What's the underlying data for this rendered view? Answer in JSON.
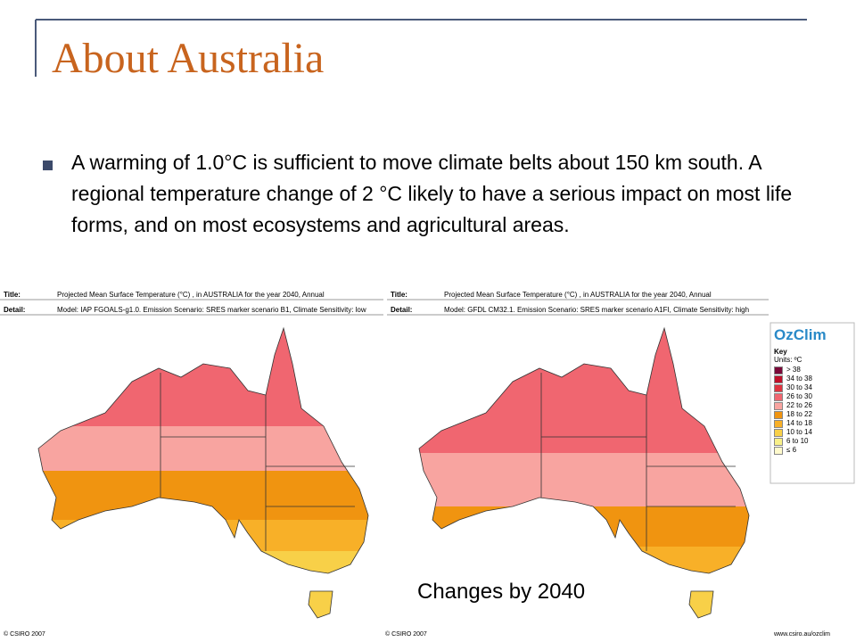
{
  "header": {
    "title": "About Australia"
  },
  "bullet": "A warming of 1.0°C is sufficient to move climate belts about 150 km south. A regional temperature change of 2 °C likely to have a serious impact on most life forms, and on most ecosystems and agricultural areas.",
  "maps": [
    {
      "title_label": "Title:",
      "title": "Projected Mean Surface Temperature (°C) , in AUSTRALIA for the year 2040, Annual",
      "detail_label": "Detail:",
      "detail": "Model: IAP FGOALS-g1.0. Emission Scenario: SRES marker scenario B1, Climate Sensitivity: low",
      "credit": "© CSIRO 2007"
    },
    {
      "title_label": "Title:",
      "title": "Projected Mean Surface Temperature (°C) , in AUSTRALIA for the year 2040, Annual",
      "detail_label": "Detail:",
      "detail": "Model: GFDL CM32.1. Emission Scenario: SRES marker scenario A1FI, Climate Sensitivity: high",
      "credit": "© CSIRO 2007"
    }
  ],
  "key": {
    "logo": "OzClim",
    "title": "Key",
    "units": "Units: ºC",
    "items": [
      {
        "label": "> 38",
        "color": "#7a0838"
      },
      {
        "label": "34 to 38",
        "color": "#c0102a"
      },
      {
        "label": "30 to 34",
        "color": "#e03440"
      },
      {
        "label": "26 to 30",
        "color": "#f06670"
      },
      {
        "label": "22 to 26",
        "color": "#f8a4a0"
      },
      {
        "label": "18 to 22",
        "color": "#f09410"
      },
      {
        "label": "14 to 18",
        "color": "#f8b028"
      },
      {
        "label": "10 to 14",
        "color": "#f8d048"
      },
      {
        "label": "6 to 10",
        "color": "#f8f088"
      },
      {
        "label": "≤ 6",
        "color": "#fffacc"
      }
    ]
  },
  "caption": "Changes by 2040",
  "url": "www.csiro.au/ozclim"
}
